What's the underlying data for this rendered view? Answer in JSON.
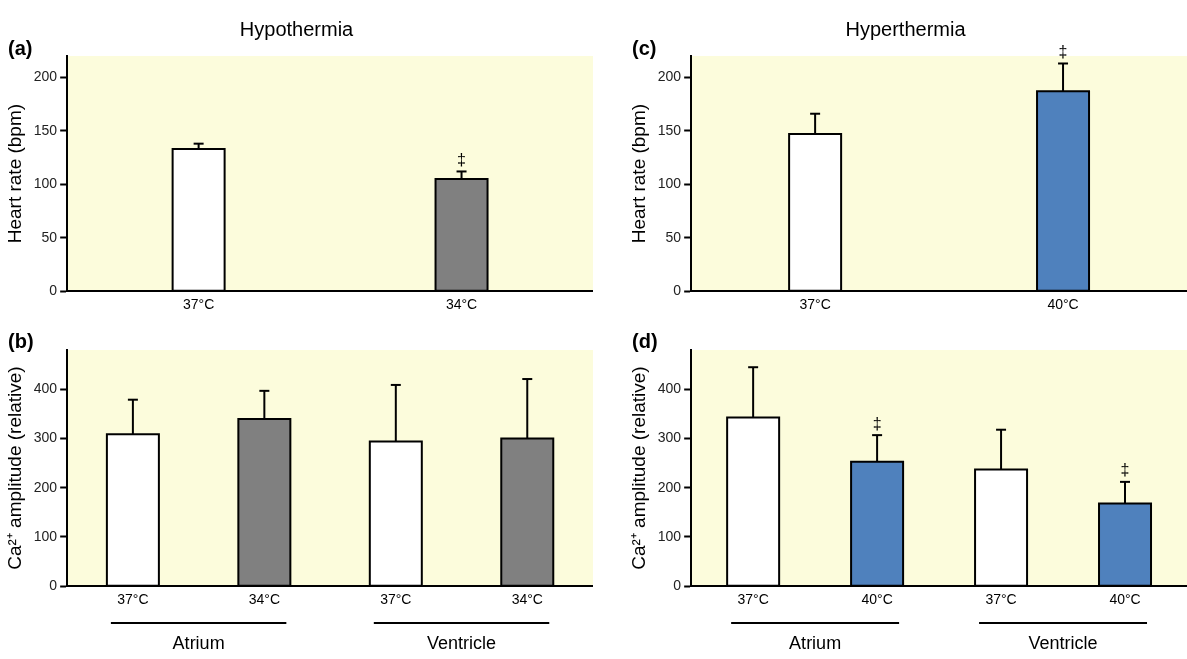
{
  "chart_data": [
    {
      "type": "bar",
      "title": "Hypothermia",
      "ylabel": "Heart rate (bpm)",
      "categories": [
        "37°C",
        "34°C"
      ],
      "values": [
        133,
        105
      ],
      "colors": [
        "#ffffff",
        "#808080"
      ],
      "errors": [
        [
          133,
          138
        ],
        [
          105,
          112
        ]
      ],
      "ylim": [
        0,
        220
      ],
      "yticks": [
        0,
        50,
        100,
        150,
        200
      ],
      "grid": false,
      "legend": false,
      "annotations": [
        "(a)",
        {
          "text": "‡",
          "x": "34°C",
          "y": 112
        }
      ]
    },
    {
      "type": "bar",
      "title": "Hyperthermia",
      "ylabel": "Heart rate (bpm)",
      "categories": [
        "37°C",
        "40°C"
      ],
      "values": [
        147,
        187
      ],
      "colors": [
        "#ffffff",
        "#4f81bd"
      ],
      "errors": [
        [
          147,
          166
        ],
        [
          187,
          213
        ]
      ],
      "ylim": [
        0,
        220
      ],
      "yticks": [
        0,
        50,
        100,
        150,
        200
      ],
      "grid": false,
      "legend": false,
      "annotations": [
        "(c)",
        {
          "text": "‡",
          "x": "40°C",
          "y": 213
        }
      ]
    },
    {
      "type": "bar",
      "ylabel": "Ca²⁺ amplitude (relative)",
      "categories": [
        "37°C",
        "34°C",
        "37°C",
        "34°C"
      ],
      "values": [
        309,
        340,
        294,
        300
      ],
      "colors": [
        "#ffffff",
        "#808080",
        "#ffffff",
        "#808080"
      ],
      "errors": [
        [
          309,
          379
        ],
        [
          340,
          397
        ],
        [
          294,
          409
        ],
        [
          300,
          421
        ]
      ],
      "ylim": [
        0,
        480
      ],
      "yticks": [
        0,
        100,
        200,
        300,
        400
      ],
      "grid": false,
      "legend": false,
      "annotations": [
        "(b)",
        "Atrium",
        "Ventricle"
      ]
    },
    {
      "type": "bar",
      "ylabel": "Ca²⁺ amplitude (relative)",
      "categories": [
        "37°C",
        "40°C",
        "37°C",
        "40°C"
      ],
      "values": [
        343,
        253,
        237,
        168
      ],
      "colors": [
        "#ffffff",
        "#4f81bd",
        "#ffffff",
        "#4f81bd"
      ],
      "errors": [
        [
          343,
          445
        ],
        [
          253,
          307
        ],
        [
          237,
          318
        ],
        [
          168,
          212
        ]
      ],
      "ylim": [
        0,
        480
      ],
      "yticks": [
        0,
        100,
        200,
        300,
        400
      ],
      "grid": false,
      "legend": false,
      "annotations": [
        "(d)",
        "Atrium",
        "Ventricle",
        {
          "text": "‡",
          "x": "40°C",
          "y": 307
        },
        "‡"
      ]
    }
  ]
}
